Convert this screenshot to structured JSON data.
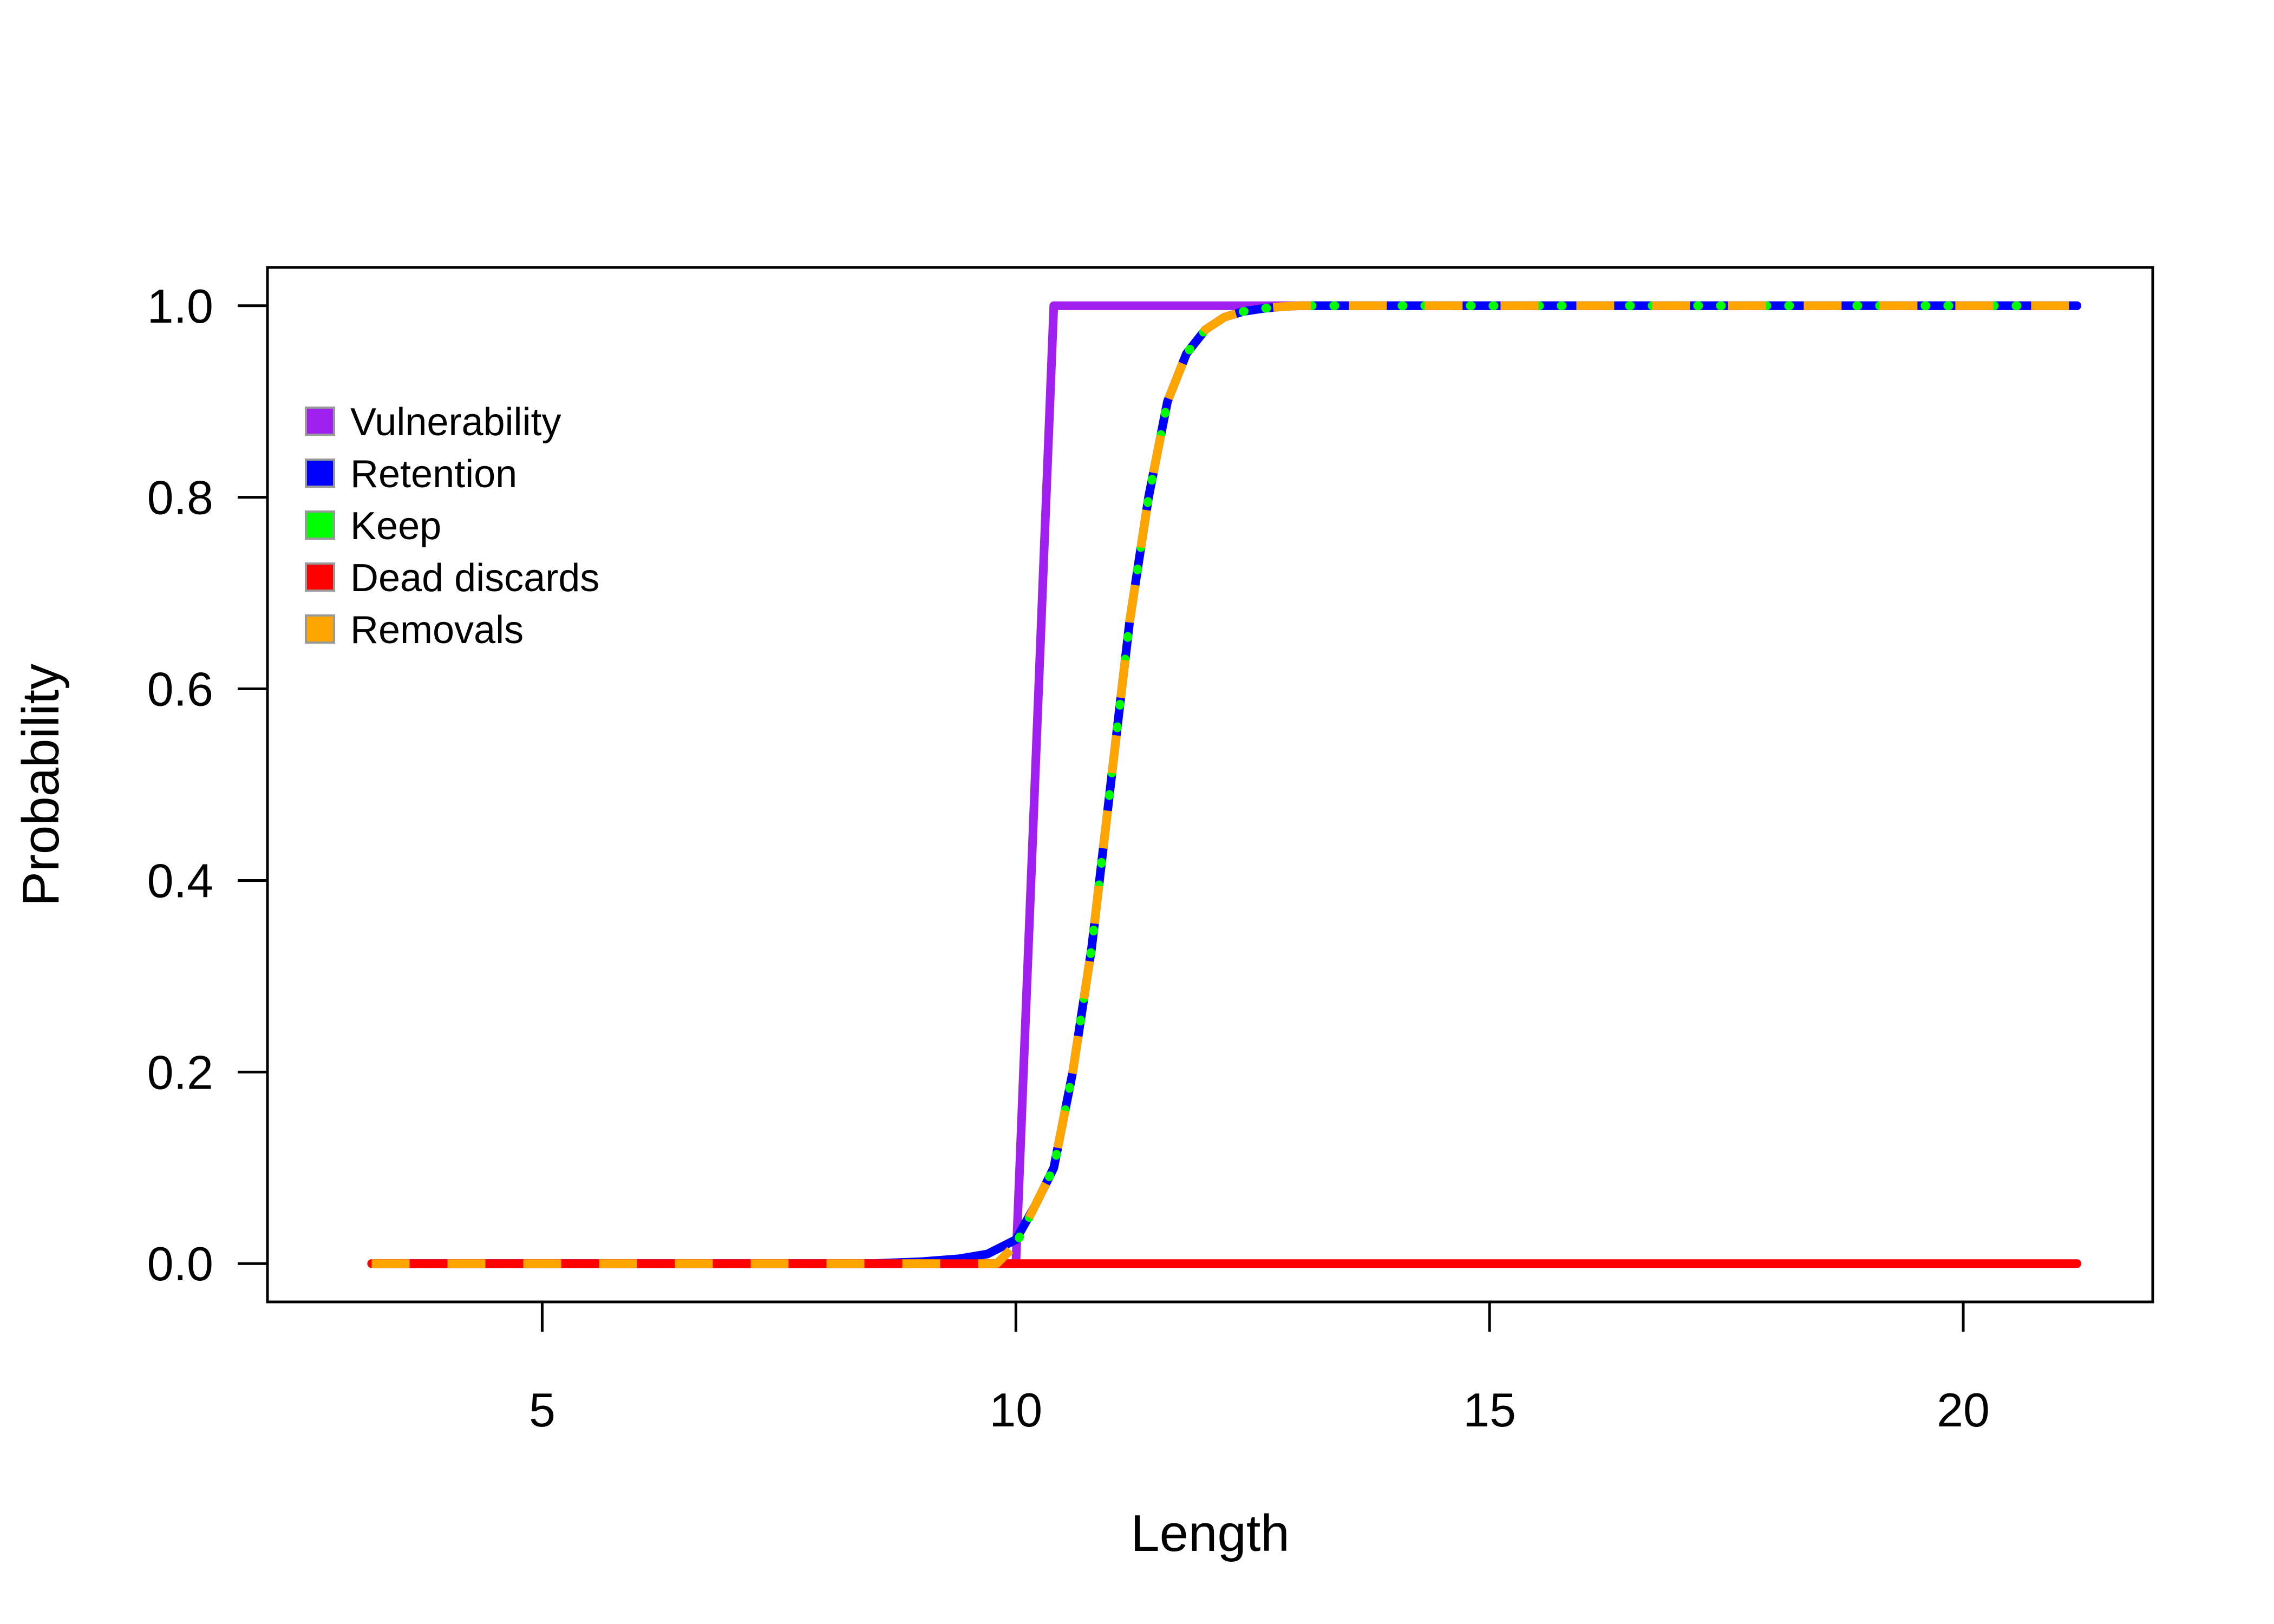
{
  "chart_data": {
    "type": "line",
    "title": "",
    "xlabel": "Length",
    "ylabel": "Probability",
    "xlim": [
      2.1,
      22.0
    ],
    "ylim": [
      -0.04,
      1.04
    ],
    "x_ticks": [
      5,
      10,
      15,
      20
    ],
    "x_tick_labels": [
      "5",
      "10",
      "15",
      "20"
    ],
    "y_ticks": [
      0.0,
      0.2,
      0.4,
      0.6,
      0.8,
      1.0
    ],
    "y_tick_labels": [
      "0.0",
      "0.2",
      "0.4",
      "0.6",
      "0.8",
      "1.0"
    ],
    "grid": false,
    "legend_position": "top-left",
    "series": [
      {
        "name": "Vulnerability",
        "color": "#A020F0",
        "style": "solid",
        "x": [
          3.2,
          9.6,
          10.0,
          10.4,
          10.8,
          21.2
        ],
        "y": [
          0.0,
          0.0,
          0.0,
          1.0,
          1.0,
          1.0
        ]
      },
      {
        "name": "Retention",
        "color": "#0000FF",
        "style": "solid",
        "x": [
          3.2,
          8.5,
          9.0,
          9.4,
          9.7,
          10.0,
          10.2,
          10.4,
          10.6,
          10.8,
          11.0,
          11.2,
          11.4,
          11.6,
          11.8,
          12.0,
          12.2,
          12.4,
          12.6,
          12.8,
          13.0,
          13.4,
          14.0,
          21.2
        ],
        "y": [
          0.0,
          0.0,
          0.002,
          0.005,
          0.01,
          0.025,
          0.06,
          0.1,
          0.2,
          0.33,
          0.5,
          0.67,
          0.8,
          0.9,
          0.95,
          0.975,
          0.988,
          0.994,
          0.997,
          0.999,
          1.0,
          1.0,
          1.0,
          1.0
        ]
      },
      {
        "name": "Keep",
        "color": "#00FF00",
        "style": "dotted",
        "x": [
          3.2,
          9.8,
          10.0,
          10.2,
          10.4,
          10.6,
          10.8,
          11.0,
          11.2,
          11.4,
          11.6,
          11.8,
          12.0,
          12.2,
          12.4,
          12.6,
          12.8,
          13.0,
          13.4,
          14.0,
          21.2
        ],
        "y": [
          0.0,
          0.0,
          0.02,
          0.06,
          0.1,
          0.2,
          0.33,
          0.5,
          0.67,
          0.8,
          0.9,
          0.95,
          0.975,
          0.988,
          0.994,
          0.997,
          0.999,
          1.0,
          1.0,
          1.0,
          1.0
        ]
      },
      {
        "name": "Dead discards",
        "color": "#FF0000",
        "style": "solid",
        "x": [
          3.2,
          21.2
        ],
        "y": [
          0.0,
          0.0
        ]
      },
      {
        "name": "Removals",
        "color": "#FFA500",
        "style": "dashed",
        "x": [
          3.2,
          9.8,
          10.0,
          10.2,
          10.4,
          10.6,
          10.8,
          11.0,
          11.2,
          11.4,
          11.6,
          11.8,
          12.0,
          12.2,
          12.4,
          12.6,
          12.8,
          13.0,
          13.4,
          14.0,
          21.2
        ],
        "y": [
          0.0,
          0.0,
          0.02,
          0.06,
          0.1,
          0.2,
          0.33,
          0.5,
          0.67,
          0.8,
          0.9,
          0.95,
          0.975,
          0.988,
          0.994,
          0.997,
          0.999,
          1.0,
          1.0,
          1.0,
          1.0
        ]
      }
    ]
  }
}
